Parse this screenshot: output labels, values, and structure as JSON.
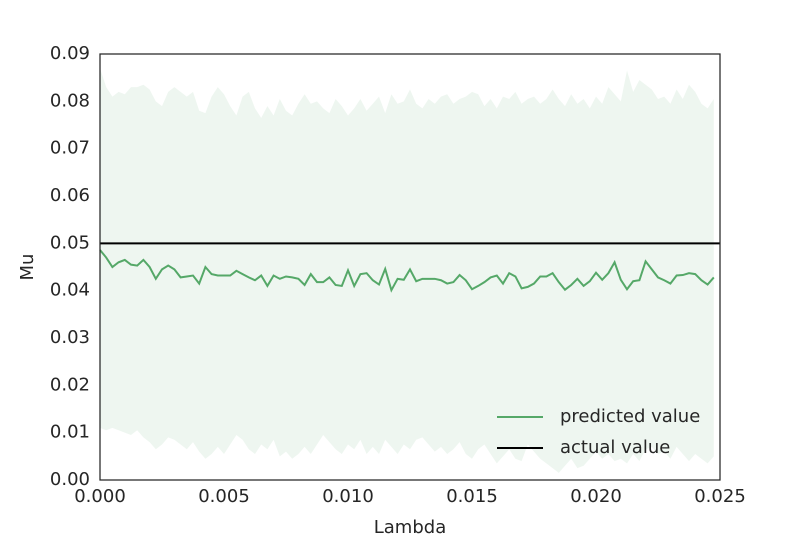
{
  "chart_data": {
    "type": "line",
    "xlabel": "Lambda",
    "ylabel": "Mu",
    "x": [
      0,
      0.00025,
      0.0005,
      0.00075,
      0.001,
      0.00125,
      0.0015,
      0.00175,
      0.002,
      0.00225,
      0.0025,
      0.00275,
      0.003,
      0.00325,
      0.0035,
      0.00375,
      0.004,
      0.00425,
      0.0045,
      0.00475,
      0.005,
      0.00525,
      0.0055,
      0.00575,
      0.006,
      0.00625,
      0.0065,
      0.00675,
      0.007,
      0.00725,
      0.0075,
      0.00775,
      0.008,
      0.00825,
      0.0085,
      0.00875,
      0.009,
      0.00925,
      0.0095,
      0.00975,
      0.01,
      0.01025,
      0.0105,
      0.01075,
      0.011,
      0.01125,
      0.0115,
      0.01175,
      0.012,
      0.01225,
      0.0125,
      0.01275,
      0.013,
      0.01325,
      0.0135,
      0.01375,
      0.014,
      0.01425,
      0.0145,
      0.01475,
      0.015,
      0.01525,
      0.0155,
      0.01575,
      0.016,
      0.01625,
      0.0165,
      0.01675,
      0.017,
      0.01725,
      0.0175,
      0.01775,
      0.018,
      0.01825,
      0.0185,
      0.01875,
      0.019,
      0.01925,
      0.0195,
      0.01975,
      0.02,
      0.02025,
      0.0205,
      0.02075,
      0.021,
      0.02125,
      0.0215,
      0.02175,
      0.022,
      0.02225,
      0.0225,
      0.02275,
      0.023,
      0.02325,
      0.0235,
      0.02375,
      0.024,
      0.02425,
      0.0245,
      0.02475
    ],
    "series": [
      {
        "name": "predicted value",
        "color": "#55a868",
        "values": [
          0.0486,
          0.047,
          0.045,
          0.046,
          0.0465,
          0.0455,
          0.0453,
          0.0465,
          0.045,
          0.0425,
          0.0445,
          0.0453,
          0.0445,
          0.0428,
          0.043,
          0.0432,
          0.0415,
          0.045,
          0.0435,
          0.0432,
          0.0432,
          0.0432,
          0.0442,
          0.0435,
          0.0428,
          0.0422,
          0.0432,
          0.041,
          0.0432,
          0.0425,
          0.043,
          0.0428,
          0.0425,
          0.0412,
          0.0435,
          0.0418,
          0.0418,
          0.0428,
          0.0412,
          0.041,
          0.0443,
          0.041,
          0.0435,
          0.0437,
          0.0422,
          0.0413,
          0.0446,
          0.0401,
          0.0425,
          0.0423,
          0.0445,
          0.042,
          0.0425,
          0.0425,
          0.0425,
          0.0422,
          0.0415,
          0.0418,
          0.0433,
          0.0422,
          0.0403,
          0.041,
          0.0418,
          0.0428,
          0.0432,
          0.0415,
          0.0437,
          0.043,
          0.0405,
          0.0408,
          0.0415,
          0.043,
          0.043,
          0.0437,
          0.0418,
          0.0402,
          0.0412,
          0.0425,
          0.041,
          0.042,
          0.0438,
          0.0423,
          0.0437,
          0.046,
          0.0423,
          0.0403,
          0.042,
          0.0422,
          0.0462,
          0.0445,
          0.0428,
          0.0422,
          0.0415,
          0.0432,
          0.0433,
          0.0437,
          0.0435,
          0.0422,
          0.0413,
          0.0428
        ]
      },
      {
        "name": "actual value",
        "color": "#000000",
        "value": 0.05
      }
    ],
    "band": {
      "color": "#55a868",
      "alpha": 0.1,
      "upper": [
        0.087,
        0.083,
        0.081,
        0.082,
        0.0815,
        0.083,
        0.083,
        0.0835,
        0.0825,
        0.08,
        0.079,
        0.082,
        0.083,
        0.082,
        0.081,
        0.082,
        0.078,
        0.0775,
        0.081,
        0.083,
        0.0815,
        0.079,
        0.077,
        0.081,
        0.082,
        0.0785,
        0.0765,
        0.079,
        0.077,
        0.0805,
        0.078,
        0.077,
        0.0795,
        0.0815,
        0.0795,
        0.08,
        0.0785,
        0.0775,
        0.0805,
        0.079,
        0.077,
        0.0785,
        0.0805,
        0.078,
        0.0795,
        0.081,
        0.0775,
        0.0815,
        0.0795,
        0.08,
        0.0825,
        0.0795,
        0.0785,
        0.0805,
        0.0795,
        0.081,
        0.0815,
        0.0795,
        0.0805,
        0.081,
        0.082,
        0.0815,
        0.079,
        0.0805,
        0.0785,
        0.081,
        0.0805,
        0.082,
        0.0795,
        0.0805,
        0.081,
        0.0795,
        0.0805,
        0.0825,
        0.0805,
        0.079,
        0.0815,
        0.0795,
        0.0805,
        0.0785,
        0.081,
        0.0795,
        0.083,
        0.0815,
        0.08,
        0.0865,
        0.082,
        0.0845,
        0.0835,
        0.0825,
        0.0805,
        0.081,
        0.0795,
        0.0825,
        0.0805,
        0.0835,
        0.082,
        0.0795,
        0.0785,
        0.0805
      ],
      "lower": [
        0.011,
        0.0105,
        0.011,
        0.0105,
        0.01,
        0.0095,
        0.0105,
        0.009,
        0.008,
        0.0065,
        0.0075,
        0.009,
        0.0085,
        0.0075,
        0.0065,
        0.008,
        0.006,
        0.0045,
        0.0055,
        0.007,
        0.0055,
        0.0075,
        0.0095,
        0.0085,
        0.0065,
        0.0055,
        0.0075,
        0.0065,
        0.0085,
        0.005,
        0.006,
        0.0045,
        0.0055,
        0.007,
        0.0055,
        0.0075,
        0.0095,
        0.008,
        0.0065,
        0.0055,
        0.0075,
        0.0065,
        0.0085,
        0.0055,
        0.007,
        0.0055,
        0.0085,
        0.007,
        0.0055,
        0.0075,
        0.0065,
        0.0085,
        0.009,
        0.0075,
        0.006,
        0.007,
        0.0055,
        0.0065,
        0.008,
        0.0055,
        0.0045,
        0.0065,
        0.0075,
        0.0055,
        0.0035,
        0.005,
        0.0065,
        0.0045,
        0.004,
        0.0075,
        0.006,
        0.0045,
        0.0035,
        0.0025,
        0.0015,
        0.003,
        0.0045,
        0.0025,
        0.003,
        0.0045,
        0.006,
        0.0045,
        0.0055,
        0.004,
        0.0045,
        0.0035,
        0.0055,
        0.004,
        0.0065,
        0.007,
        0.0055,
        0.006,
        0.0045,
        0.007,
        0.0055,
        0.004,
        0.0055,
        0.0045,
        0.0035,
        0.005
      ]
    },
    "xlim": [
      0,
      0.025
    ],
    "xticks": [
      {
        "value": 0,
        "label": "0.000"
      },
      {
        "value": 0.005,
        "label": "0.005"
      },
      {
        "value": 0.01,
        "label": "0.010"
      },
      {
        "value": 0.015,
        "label": "0.015"
      },
      {
        "value": 0.02,
        "label": "0.020"
      },
      {
        "value": 0.025,
        "label": "0.025"
      }
    ],
    "ylim": [
      0,
      0.09
    ],
    "yticks": [
      {
        "value": 0,
        "label": "0.00"
      },
      {
        "value": 0.01,
        "label": "0.01"
      },
      {
        "value": 0.02,
        "label": "0.02"
      },
      {
        "value": 0.03,
        "label": "0.03"
      },
      {
        "value": 0.04,
        "label": "0.04"
      },
      {
        "value": 0.05,
        "label": "0.05"
      },
      {
        "value": 0.06,
        "label": "0.06"
      },
      {
        "value": 0.07,
        "label": "0.07"
      },
      {
        "value": 0.08,
        "label": "0.08"
      },
      {
        "value": 0.09,
        "label": "0.09"
      }
    ],
    "grid": false,
    "legend": "lower right"
  }
}
